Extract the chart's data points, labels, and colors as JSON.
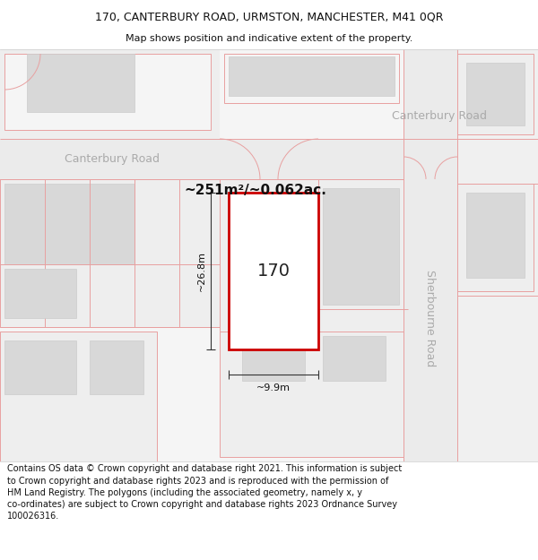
{
  "title_line1": "170, CANTERBURY ROAD, URMSTON, MANCHESTER, M41 0QR",
  "title_line2": "Map shows position and indicative extent of the property.",
  "footer_text": "Contains OS data © Crown copyright and database right 2021. This information is subject to Crown copyright and database rights 2023 and is reproduced with the permission of HM Land Registry. The polygons (including the associated geometry, namely x, y co-ordinates) are subject to Crown copyright and database rights 2023 Ordnance Survey 100026316.",
  "area_label": "~251m²/~0.062ac.",
  "width_label": "~9.9m",
  "height_label": "~26.8m",
  "house_number": "170",
  "road_label_left": "Canterbury Road",
  "road_label_right": "Canterbury Road",
  "road_label_vert": "Sherbourne Road",
  "bg_color": "#f5f5f5",
  "road_fill": "#e4e4e4",
  "building_fill": "#d8d8d8",
  "parcel_bg": "#f0f0f0",
  "property_fill": "#ffffff",
  "property_border": "#cc0000",
  "pink_line_color": "#e8a0a0",
  "dark_line_color": "#333333",
  "gray_text": "#aaaaaa",
  "title_fontsize": 9,
  "subtitle_fontsize": 8,
  "footer_fontsize": 7,
  "road_label_fontsize": 9,
  "area_fontsize": 11,
  "dim_fontsize": 8,
  "num_fontsize": 14
}
